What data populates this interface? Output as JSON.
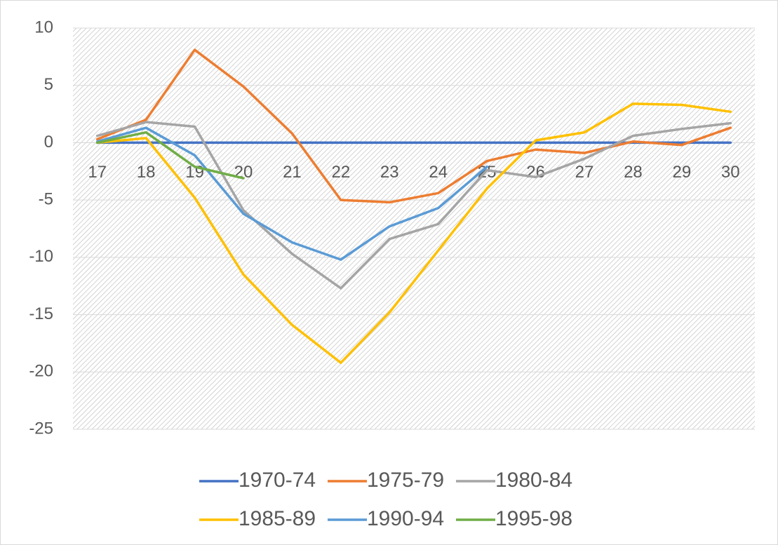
{
  "chart_data": {
    "type": "line",
    "categories": [
      "17",
      "18",
      "19",
      "20",
      "21",
      "22",
      "23",
      "24",
      "25",
      "26",
      "27",
      "28",
      "29",
      "30"
    ],
    "series": [
      {
        "name": "1970-74",
        "color": "#4472c4",
        "values": [
          0,
          0,
          0,
          0,
          0,
          0,
          0,
          0,
          0,
          0,
          0,
          0,
          0,
          0
        ]
      },
      {
        "name": "1975-79",
        "color": "#ed7d31",
        "values": [
          0.3,
          2.0,
          8.1,
          4.9,
          0.8,
          -5.0,
          -5.2,
          -4.4,
          -1.6,
          -0.6,
          -0.9,
          0.1,
          -0.2,
          1.3
        ]
      },
      {
        "name": "1980-84",
        "color": "#a5a5a5",
        "values": [
          0.6,
          1.8,
          1.4,
          -5.9,
          -9.7,
          -12.7,
          -8.4,
          -7.1,
          -2.4,
          -3.0,
          -1.4,
          0.6,
          1.2,
          1.7
        ]
      },
      {
        "name": "1985-89",
        "color": "#ffc000",
        "values": [
          0,
          0.4,
          -4.8,
          -11.5,
          -15.9,
          -19.2,
          -14.8,
          -9.4,
          -4.0,
          0.2,
          0.9,
          3.4,
          3.3,
          2.7
        ]
      },
      {
        "name": "1990-94",
        "color": "#5b9bd5",
        "values": [
          0.1,
          1.3,
          -1.1,
          -6.2,
          -8.7,
          -10.2,
          -7.3,
          -5.7,
          -2.1,
          null,
          null,
          null,
          null,
          null
        ]
      },
      {
        "name": "1995-98",
        "color": "#70ad47",
        "values": [
          0,
          0.9,
          -2.1,
          -3.1,
          null,
          null,
          null,
          null,
          null,
          null,
          null,
          null,
          null,
          null
        ]
      }
    ],
    "ylim": [
      -25,
      10
    ],
    "yticks": [
      -25,
      -20,
      -15,
      -10,
      -5,
      0,
      5,
      10
    ],
    "grid": true
  }
}
